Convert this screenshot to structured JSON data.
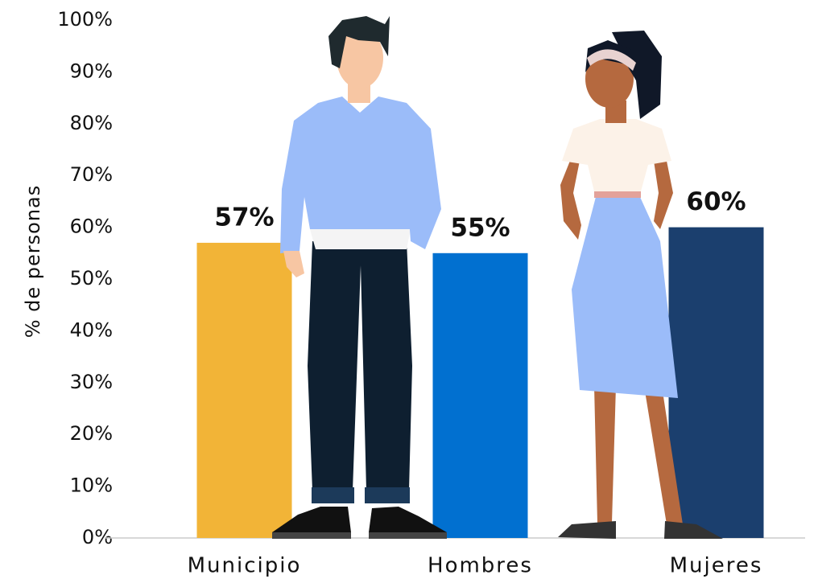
{
  "chart_data": {
    "type": "bar",
    "y_label": "% de personas",
    "categories": [
      "Municipio",
      "Hombres",
      "Mujeres"
    ],
    "values": [
      57,
      55,
      60
    ],
    "value_labels": [
      "57%",
      "55%",
      "60%"
    ],
    "colors": [
      "#f2b437",
      "#0170d0",
      "#1b3f6e"
    ],
    "ylim": [
      0,
      100
    ],
    "yticks": [
      {
        "value": 0,
        "label": "0%"
      },
      {
        "value": 10,
        "label": "10%"
      },
      {
        "value": 20,
        "label": "20%"
      },
      {
        "value": 30,
        "label": "30%"
      },
      {
        "value": 40,
        "label": "40%"
      },
      {
        "value": 50,
        "label": "50%"
      },
      {
        "value": 60,
        "label": "60%"
      },
      {
        "value": 70,
        "label": "70%"
      },
      {
        "value": 80,
        "label": "80%"
      },
      {
        "value": 90,
        "label": "90%"
      },
      {
        "value": 100,
        "label": "100%"
      }
    ],
    "grid": false
  }
}
